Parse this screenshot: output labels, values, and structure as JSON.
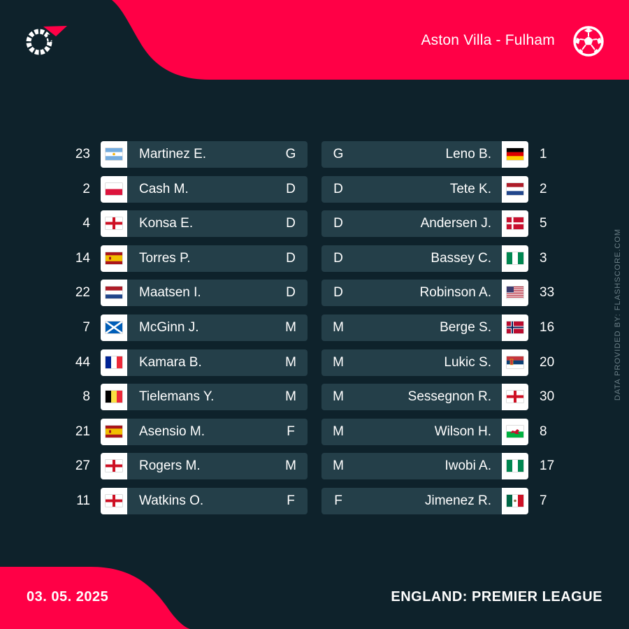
{
  "header": {
    "match": "Aston Villa - Fulham",
    "ball_icon": "football-icon",
    "logo_icon": "flashscore-logo-icon"
  },
  "watermark": "DATA PROVIDED BY: FLASHSCORE.COM",
  "footer": {
    "date": "03. 05. 2025",
    "league": "ENGLAND: PREMIER LEAGUE"
  },
  "colors": {
    "accent": "#ff0046",
    "background": "#0e222b",
    "row": "#243f49"
  },
  "home": {
    "players": [
      {
        "number": "23",
        "name": "Martinez E.",
        "position": "G",
        "flag": "argentina"
      },
      {
        "number": "2",
        "name": "Cash M.",
        "position": "D",
        "flag": "poland"
      },
      {
        "number": "4",
        "name": "Konsa E.",
        "position": "D",
        "flag": "england"
      },
      {
        "number": "14",
        "name": "Torres P.",
        "position": "D",
        "flag": "spain"
      },
      {
        "number": "22",
        "name": "Maatsen I.",
        "position": "D",
        "flag": "netherlands"
      },
      {
        "number": "7",
        "name": "McGinn J.",
        "position": "M",
        "flag": "scotland"
      },
      {
        "number": "44",
        "name": "Kamara B.",
        "position": "M",
        "flag": "france"
      },
      {
        "number": "8",
        "name": "Tielemans Y.",
        "position": "M",
        "flag": "belgium"
      },
      {
        "number": "21",
        "name": "Asensio M.",
        "position": "F",
        "flag": "spain"
      },
      {
        "number": "27",
        "name": "Rogers M.",
        "position": "M",
        "flag": "england"
      },
      {
        "number": "11",
        "name": "Watkins O.",
        "position": "F",
        "flag": "england"
      }
    ]
  },
  "away": {
    "players": [
      {
        "number": "1",
        "name": "Leno B.",
        "position": "G",
        "flag": "germany"
      },
      {
        "number": "2",
        "name": "Tete K.",
        "position": "D",
        "flag": "netherlands"
      },
      {
        "number": "5",
        "name": "Andersen J.",
        "position": "D",
        "flag": "denmark"
      },
      {
        "number": "3",
        "name": "Bassey C.",
        "position": "D",
        "flag": "nigeria"
      },
      {
        "number": "33",
        "name": "Robinson A.",
        "position": "D",
        "flag": "usa"
      },
      {
        "number": "16",
        "name": "Berge S.",
        "position": "M",
        "flag": "norway"
      },
      {
        "number": "20",
        "name": "Lukic S.",
        "position": "M",
        "flag": "serbia"
      },
      {
        "number": "30",
        "name": "Sessegnon R.",
        "position": "M",
        "flag": "england"
      },
      {
        "number": "8",
        "name": "Wilson H.",
        "position": "M",
        "flag": "wales"
      },
      {
        "number": "17",
        "name": "Iwobi A.",
        "position": "M",
        "flag": "nigeria"
      },
      {
        "number": "7",
        "name": "Jimenez R.",
        "position": "F",
        "flag": "mexico"
      }
    ]
  }
}
